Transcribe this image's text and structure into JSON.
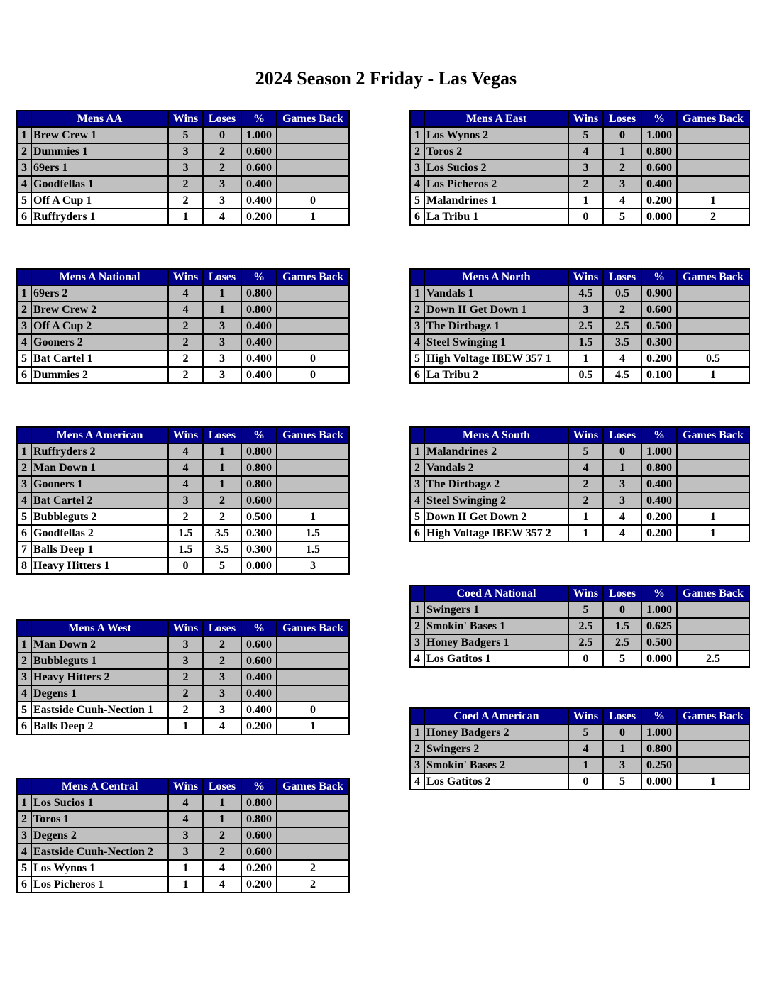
{
  "title": "2024 Season 2 Friday - Las Vegas",
  "columns": {
    "wins": "Wins",
    "loses": "Loses",
    "pct": "%",
    "gb": "Games Back"
  },
  "colors": {
    "header": "#00008b",
    "highlight": "#c0c0c0"
  },
  "tables": [
    {
      "division": "Mens AA",
      "rows": [
        [
          "1",
          "Brew Crew 1",
          "5",
          "0",
          "1.000",
          "",
          true
        ],
        [
          "2",
          "Dummies 1",
          "3",
          "2",
          "0.600",
          "",
          true
        ],
        [
          "3",
          "69ers 1",
          "3",
          "2",
          "0.600",
          "",
          true
        ],
        [
          "4",
          "Goodfellas 1",
          "2",
          "3",
          "0.400",
          "",
          true
        ],
        [
          "5",
          "Off A Cup 1",
          "2",
          "3",
          "0.400",
          "0",
          false
        ],
        [
          "6",
          "Ruffryders 1",
          "1",
          "4",
          "0.200",
          "1",
          false
        ]
      ]
    },
    {
      "division": "Mens A National",
      "rows": [
        [
          "1",
          "69ers 2",
          "4",
          "1",
          "0.800",
          "",
          true
        ],
        [
          "2",
          "Brew Crew 2",
          "4",
          "1",
          "0.800",
          "",
          true
        ],
        [
          "3",
          "Off A Cup 2",
          "2",
          "3",
          "0.400",
          "",
          true
        ],
        [
          "4",
          "Gooners 2",
          "2",
          "3",
          "0.400",
          "",
          true
        ],
        [
          "5",
          "Bat Cartel 1",
          "2",
          "3",
          "0.400",
          "0",
          false
        ],
        [
          "6",
          "Dummies 2",
          "2",
          "3",
          "0.400",
          "0",
          false
        ]
      ]
    },
    {
      "division": "Mens A American",
      "rows": [
        [
          "1",
          "Ruffryders 2",
          "4",
          "1",
          "0.800",
          "",
          true
        ],
        [
          "2",
          "Man Down 1",
          "4",
          "1",
          "0.800",
          "",
          true
        ],
        [
          "3",
          "Gooners 1",
          "4",
          "1",
          "0.800",
          "",
          true
        ],
        [
          "4",
          "Bat Cartel 2",
          "3",
          "2",
          "0.600",
          "",
          true
        ],
        [
          "5",
          "Bubbleguts 2",
          "2",
          "2",
          "0.500",
          "1",
          false
        ],
        [
          "6",
          "Goodfellas 2",
          "1.5",
          "3.5",
          "0.300",
          "1.5",
          false
        ],
        [
          "7",
          "Balls Deep 1",
          "1.5",
          "3.5",
          "0.300",
          "1.5",
          false
        ],
        [
          "8",
          "Heavy Hitters 1",
          "0",
          "5",
          "0.000",
          "3",
          false
        ]
      ]
    },
    {
      "division": "Mens A West",
      "rows": [
        [
          "1",
          "Man Down 2",
          "3",
          "2",
          "0.600",
          "",
          true
        ],
        [
          "2",
          "Bubbleguts 1",
          "3",
          "2",
          "0.600",
          "",
          true
        ],
        [
          "3",
          "Heavy Hitters 2",
          "2",
          "3",
          "0.400",
          "",
          true
        ],
        [
          "4",
          "Degens 1",
          "2",
          "3",
          "0.400",
          "",
          true
        ],
        [
          "5",
          "Eastside Cuuh-Nection 1",
          "2",
          "3",
          "0.400",
          "0",
          false
        ],
        [
          "6",
          "Balls Deep 2",
          "1",
          "4",
          "0.200",
          "1",
          false
        ]
      ]
    },
    {
      "division": "Mens A Central",
      "rows": [
        [
          "1",
          "Los Sucios 1",
          "4",
          "1",
          "0.800",
          "",
          true
        ],
        [
          "2",
          "Toros 1",
          "4",
          "1",
          "0.800",
          "",
          true
        ],
        [
          "3",
          "Degens 2",
          "3",
          "2",
          "0.600",
          "",
          true
        ],
        [
          "4",
          "Eastside Cuuh-Nection 2",
          "3",
          "2",
          "0.600",
          "",
          true
        ],
        [
          "5",
          "Los Wynos 1",
          "1",
          "4",
          "0.200",
          "2",
          false
        ],
        [
          "6",
          "Los Picheros 1",
          "1",
          "4",
          "0.200",
          "2",
          false
        ]
      ]
    },
    {
      "division": "Mens A East",
      "rows": [
        [
          "1",
          "Los Wynos 2",
          "5",
          "0",
          "1.000",
          "",
          true
        ],
        [
          "2",
          "Toros 2",
          "4",
          "1",
          "0.800",
          "",
          true
        ],
        [
          "3",
          "Los Sucios 2",
          "3",
          "2",
          "0.600",
          "",
          true
        ],
        [
          "4",
          "Los Picheros 2",
          "2",
          "3",
          "0.400",
          "",
          true
        ],
        [
          "5",
          "Malandrines 1",
          "1",
          "4",
          "0.200",
          "1",
          false
        ],
        [
          "6",
          "La Tribu 1",
          "0",
          "5",
          "0.000",
          "2",
          false
        ]
      ]
    },
    {
      "division": "Mens A North",
      "rows": [
        [
          "1",
          "Vandals 1",
          "4.5",
          "0.5",
          "0.900",
          "",
          true
        ],
        [
          "2",
          "Down II Get Down 1",
          "3",
          "2",
          "0.600",
          "",
          true
        ],
        [
          "3",
          "The Dirtbagz 1",
          "2.5",
          "2.5",
          "0.500",
          "",
          true
        ],
        [
          "4",
          "Steel Swinging 1",
          "1.5",
          "3.5",
          "0.300",
          "",
          true
        ],
        [
          "5",
          "High Voltage IBEW 357 1",
          "1",
          "4",
          "0.200",
          "0.5",
          false
        ],
        [
          "6",
          "La Tribu 2",
          "0.5",
          "4.5",
          "0.100",
          "1",
          false
        ]
      ]
    },
    {
      "division": "Mens A South",
      "rows": [
        [
          "1",
          "Malandrines 2",
          "5",
          "0",
          "1.000",
          "",
          true
        ],
        [
          "2",
          "Vandals 2",
          "4",
          "1",
          "0.800",
          "",
          true
        ],
        [
          "3",
          "The Dirtbagz 2",
          "2",
          "3",
          "0.400",
          "",
          true
        ],
        [
          "4",
          "Steel Swinging 2",
          "2",
          "3",
          "0.400",
          "",
          true
        ],
        [
          "5",
          "Down II Get Down 2",
          "1",
          "4",
          "0.200",
          "1",
          false
        ],
        [
          "6",
          "High Voltage IBEW 357 2",
          "1",
          "4",
          "0.200",
          "1",
          false
        ]
      ]
    },
    {
      "division": "Coed A National",
      "rows": [
        [
          "1",
          "Swingers 1",
          "5",
          "0",
          "1.000",
          "",
          true
        ],
        [
          "2",
          "Smokin' Bases 1",
          "2.5",
          "1.5",
          "0.625",
          "",
          true
        ],
        [
          "3",
          "Honey Badgers 1",
          "2.5",
          "2.5",
          "0.500",
          "",
          true
        ],
        [
          "4",
          "Los Gatitos 1",
          "0",
          "5",
          "0.000",
          "2.5",
          false
        ]
      ]
    },
    {
      "division": "Coed A American",
      "rows": [
        [
          "1",
          "Honey Badgers 2",
          "5",
          "0",
          "1.000",
          "",
          true
        ],
        [
          "2",
          "Swingers 2",
          "4",
          "1",
          "0.800",
          "",
          true
        ],
        [
          "3",
          "Smokin' Bases 2",
          "1",
          "3",
          "0.250",
          "",
          true
        ],
        [
          "4",
          "Los Gatitos 2",
          "0",
          "5",
          "0.000",
          "1",
          false
        ]
      ]
    }
  ]
}
